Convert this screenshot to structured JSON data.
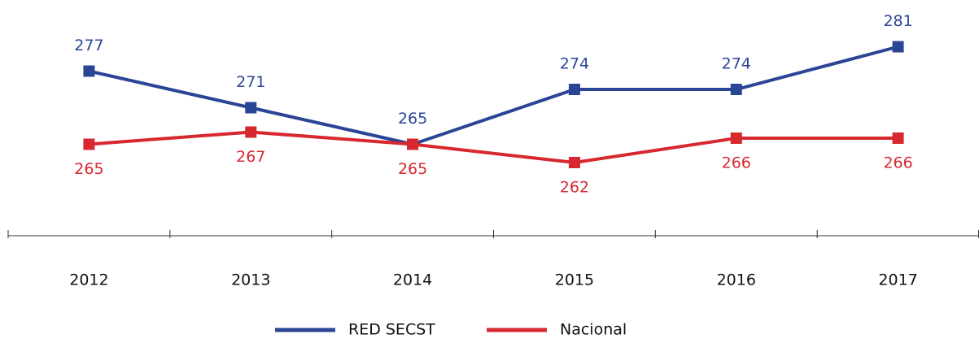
{
  "chart_data": {
    "type": "line",
    "categories": [
      "2012",
      "2013",
      "2014",
      "2015",
      "2016",
      "2017"
    ],
    "series": [
      {
        "name": "RED SECST",
        "color": "#2b4596",
        "values": [
          277,
          271,
          265,
          274,
          274,
          281
        ]
      },
      {
        "name": "Nacional",
        "color": "#d7282f",
        "values": [
          265,
          267,
          265,
          262,
          266,
          266
        ]
      }
    ],
    "ylim": [
      250,
      290
    ],
    "legend": "bottom"
  }
}
